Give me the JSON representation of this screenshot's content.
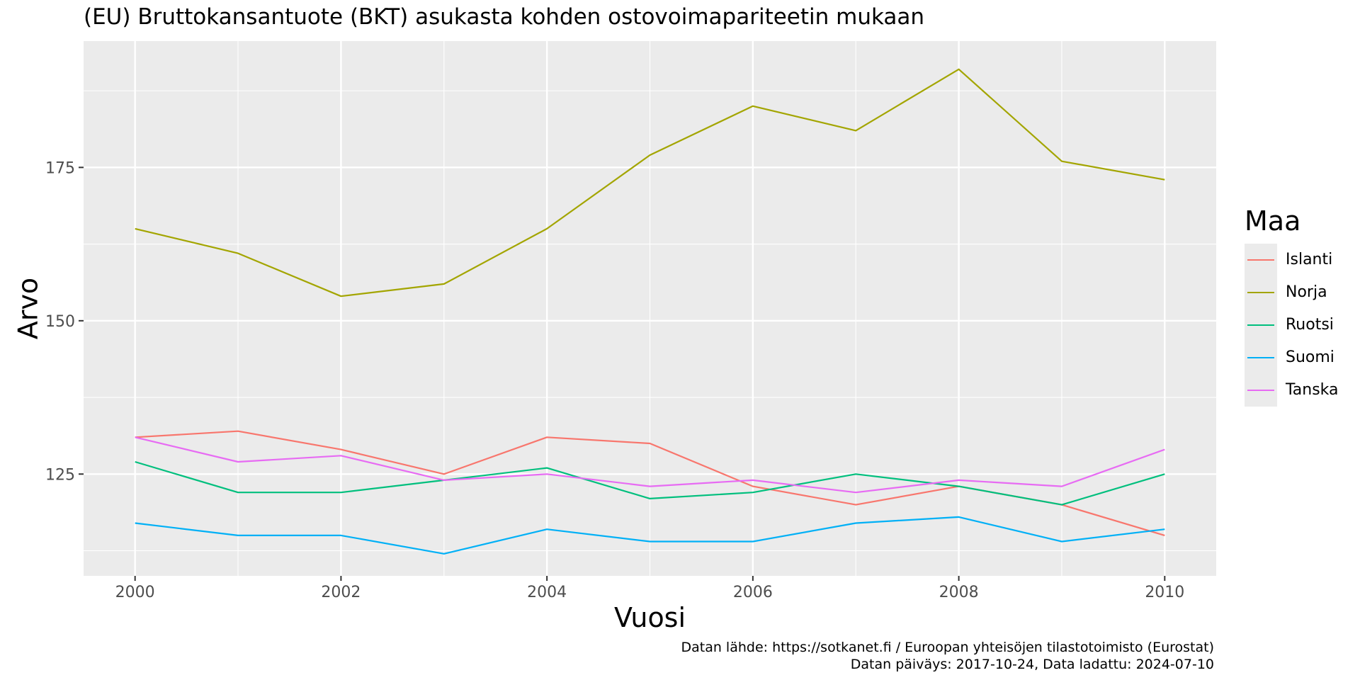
{
  "chart_data": {
    "type": "line",
    "title": "(EU) Bruttokansantuote (BKT) asukasta kohden ostovoimapariteetin mukaan",
    "xlabel": "Vuosi",
    "ylabel": "Arvo",
    "x": [
      2000,
      2001,
      2002,
      2003,
      2004,
      2005,
      2006,
      2007,
      2008,
      2009,
      2010
    ],
    "xlim": [
      1999.5,
      2010.5
    ],
    "ylim": [
      108.4,
      195.6
    ],
    "x_ticks": [
      2000,
      2002,
      2004,
      2006,
      2008,
      2010
    ],
    "y_ticks": [
      125,
      150,
      175
    ],
    "grid": true,
    "legend_title": "Maa",
    "legend_position": "right",
    "series": [
      {
        "name": "Islanti",
        "color": "#F8766D",
        "values": [
          131,
          132,
          129,
          125,
          131,
          130,
          123,
          120,
          123,
          120,
          115
        ]
      },
      {
        "name": "Norja",
        "color": "#A3A500",
        "values": [
          165,
          161,
          154,
          156,
          165,
          177,
          185,
          181,
          191,
          176,
          173
        ]
      },
      {
        "name": "Ruotsi",
        "color": "#00BF7D",
        "values": [
          127,
          122,
          122,
          124,
          126,
          121,
          122,
          125,
          123,
          120,
          125
        ]
      },
      {
        "name": "Suomi",
        "color": "#00B0F6",
        "values": [
          117,
          115,
          115,
          112,
          116,
          114,
          114,
          117,
          118,
          114,
          116
        ]
      },
      {
        "name": "Tanska",
        "color": "#E76BF3",
        "values": [
          131,
          127,
          128,
          124,
          125,
          123,
          124,
          122,
          124,
          123,
          129
        ]
      }
    ],
    "caption": [
      "Datan lähde: https://sotkanet.fi / Euroopan yhteisöjen tilastotoimisto (Eurostat)",
      "Datan päiväys: 2017-10-24, Data ladattu: 2024-07-10"
    ]
  }
}
